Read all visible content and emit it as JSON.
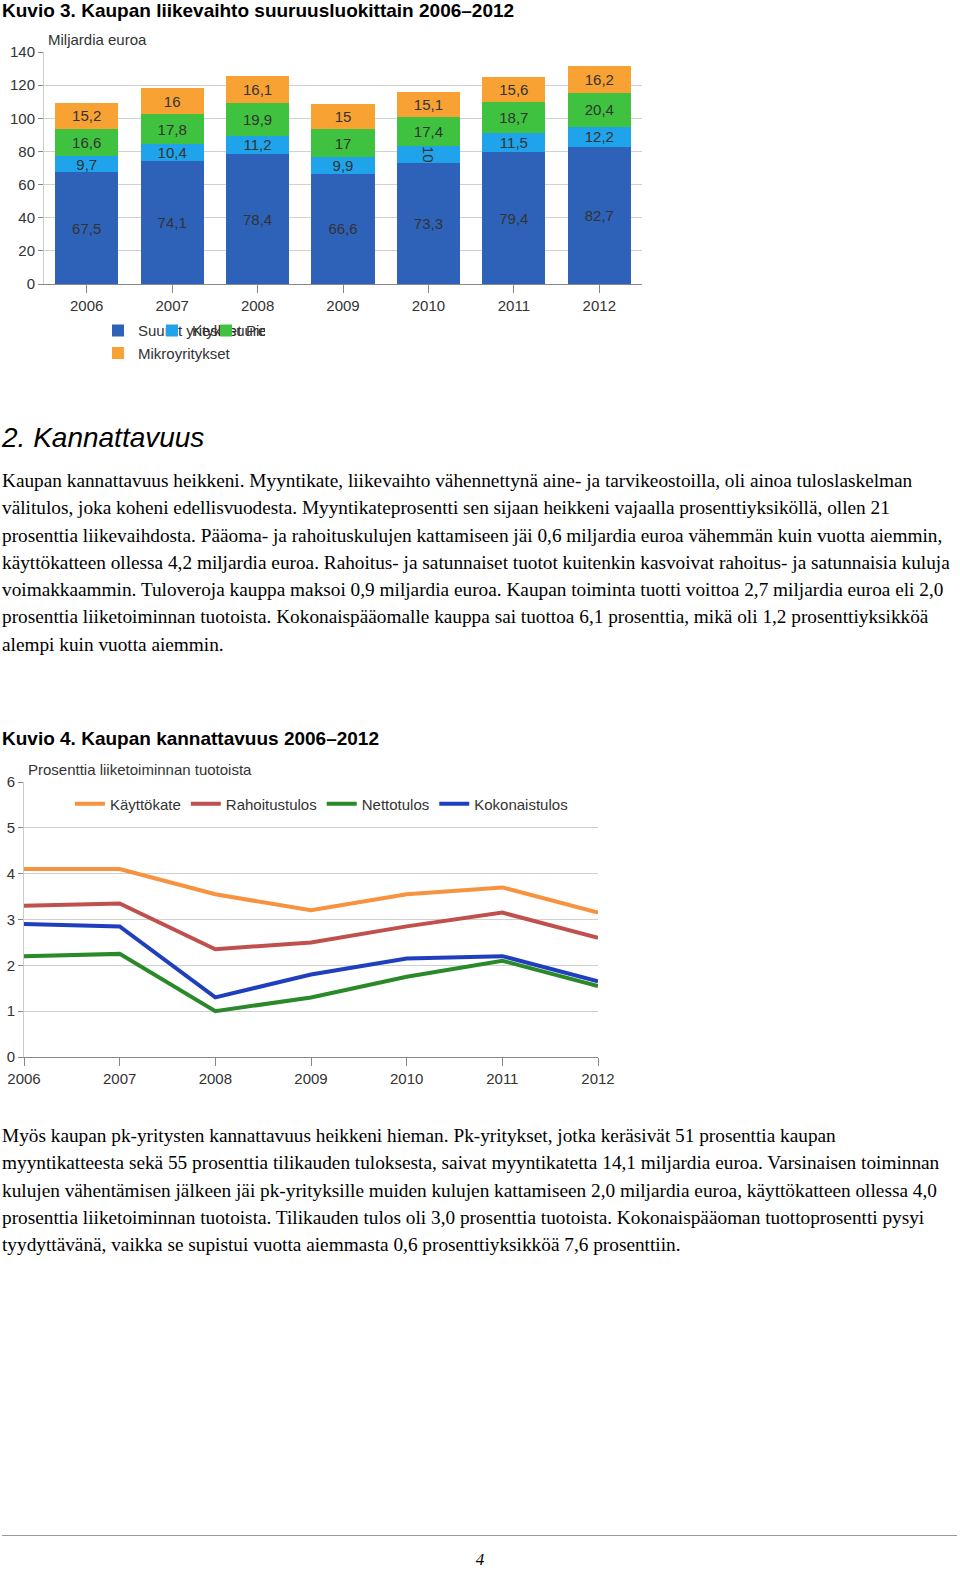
{
  "chart_data": [
    {
      "type": "bar",
      "title": "Kuvio 3. Kaupan liikevaihto suuruusluokittain 2006–2012",
      "y_label": "Miljardia euroa",
      "stacked": true,
      "data_labels": true,
      "grid": true,
      "legend": "bottom",
      "categories": [
        "2006",
        "2007",
        "2008",
        "2009",
        "2010",
        "2011",
        "2012"
      ],
      "ylim": [
        0,
        140
      ],
      "yticks": [
        0,
        20,
        40,
        60,
        80,
        100,
        120,
        140
      ],
      "series": [
        {
          "name": "Suuret yritykset",
          "color": "#2d62b8",
          "values": [
            67.5,
            74.1,
            78.4,
            66.6,
            73.3,
            79.4,
            82.7
          ],
          "value_labels": [
            "67,5",
            "74,1",
            "78,4",
            "66,6",
            "73,3",
            "79,4",
            "82,7"
          ]
        },
        {
          "name": "Keskisuuret yritykset",
          "color": "#1fa3ea",
          "values": [
            9.7,
            10.4,
            11.2,
            9.9,
            10,
            11.5,
            12.2
          ],
          "value_labels": [
            "9,7",
            "10,4",
            "11,2",
            "9,9",
            "10",
            "11,5",
            "12,2"
          ]
        },
        {
          "name": "Pienet yritykset",
          "color": "#3fc23f",
          "values": [
            16.6,
            17.8,
            19.9,
            17,
            17.4,
            18.7,
            20.4
          ],
          "value_labels": [
            "16,6",
            "17,8",
            "19,9",
            "17",
            "17,4",
            "18,7",
            "20,4"
          ]
        },
        {
          "name": "Mikroyritykset",
          "color": "#f7a233",
          "values": [
            15.2,
            16,
            16.1,
            15,
            15.1,
            15.6,
            16.2
          ],
          "value_labels": [
            "15,2",
            "16",
            "16,1",
            "15",
            "15,1",
            "15,6",
            "16,2"
          ]
        }
      ]
    },
    {
      "type": "line",
      "title": "Kuvio 4. Kaupan kannattavuus 2006–2012",
      "y_label": "Prosenttia liiketoiminnan tuotoista",
      "grid": true,
      "legend": "top",
      "categories": [
        "2006",
        "2007",
        "2008",
        "2009",
        "2010",
        "2011",
        "2012"
      ],
      "ylim": [
        0,
        6
      ],
      "yticks": [
        0,
        1,
        2,
        3,
        4,
        5,
        6
      ],
      "series": [
        {
          "name": "Käyttökate",
          "color": "#f7923f",
          "values": [
            4.1,
            4.1,
            3.55,
            3.2,
            3.55,
            3.7,
            3.15
          ]
        },
        {
          "name": "Rahoitustulos",
          "color": "#c0504d",
          "values": [
            3.3,
            3.35,
            2.35,
            2.5,
            2.85,
            3.15,
            2.6
          ]
        },
        {
          "name": "Nettotulos",
          "color": "#2a8a2a",
          "values": [
            2.2,
            2.25,
            1.0,
            1.3,
            1.75,
            2.1,
            1.55
          ]
        },
        {
          "name": "Kokonaistulos",
          "color": "#1f3fbf",
          "values": [
            2.9,
            2.85,
            1.3,
            1.8,
            2.15,
            2.2,
            1.65
          ]
        }
      ]
    }
  ],
  "document": {
    "heading": "2. Kannattavuus",
    "paragraphs": [
      "Kaupan kannattavuus heikkeni. Myyntikate, liikevaihto vähennettynä aine- ja tarvikeostoilla, oli ainoa tuloslaskelman välitulos, joka koheni edellisvuodesta. Myyntikateprosentti sen sijaan heikkeni vajaalla prosenttiyksiköllä, ollen 21 prosenttia liikevaihdosta. Pääoma- ja rahoituskulujen kattamiseen jäi 0,6 miljardia euroa vähemmän kuin vuotta aiemmin, käyttökatteen ollessa 4,2 miljardia euroa. Rahoitus- ja satunnaiset tuotot kuitenkin kasvoivat rahoitus- ja satunnaisia kuluja voimakkaammin. Tuloveroja kauppa maksoi 0,9 miljardia euroa. Kaupan toiminta tuotti voittoa 2,7 miljardia euroa eli 2,0 prosenttia liiketoiminnan tuotoista. Kokonaispääomalle kauppa sai tuottoa 6,1 prosenttia, mikä oli 1,2 prosenttiyksikköä alempi kuin vuotta aiemmin.",
      "Myös kaupan pk-yritysten kannattavuus heikkeni hieman. Pk-yritykset, jotka keräsivät 51 prosenttia kaupan myyntikatteesta sekä 55 prosenttia tilikauden tuloksesta, saivat myyntikatetta 14,1 miljardia euroa. Varsinaisen toiminnan kulujen vähentämisen jälkeen jäi pk-yrityksille muiden kulujen kattamiseen 2,0 miljardia euroa, käyttökatteen ollessa 4,0 prosenttia liiketoiminnan tuotoista. Tilikauden tulos oli 3,0 prosenttia tuotoista. Kokonaispääoman tuottoprosentti pysyi tyydyttävänä, vaikka se supistui vuotta aiemmasta 0,6 prosenttiyksikköä 7,6 prosenttiin."
    ],
    "page_number": "4"
  }
}
